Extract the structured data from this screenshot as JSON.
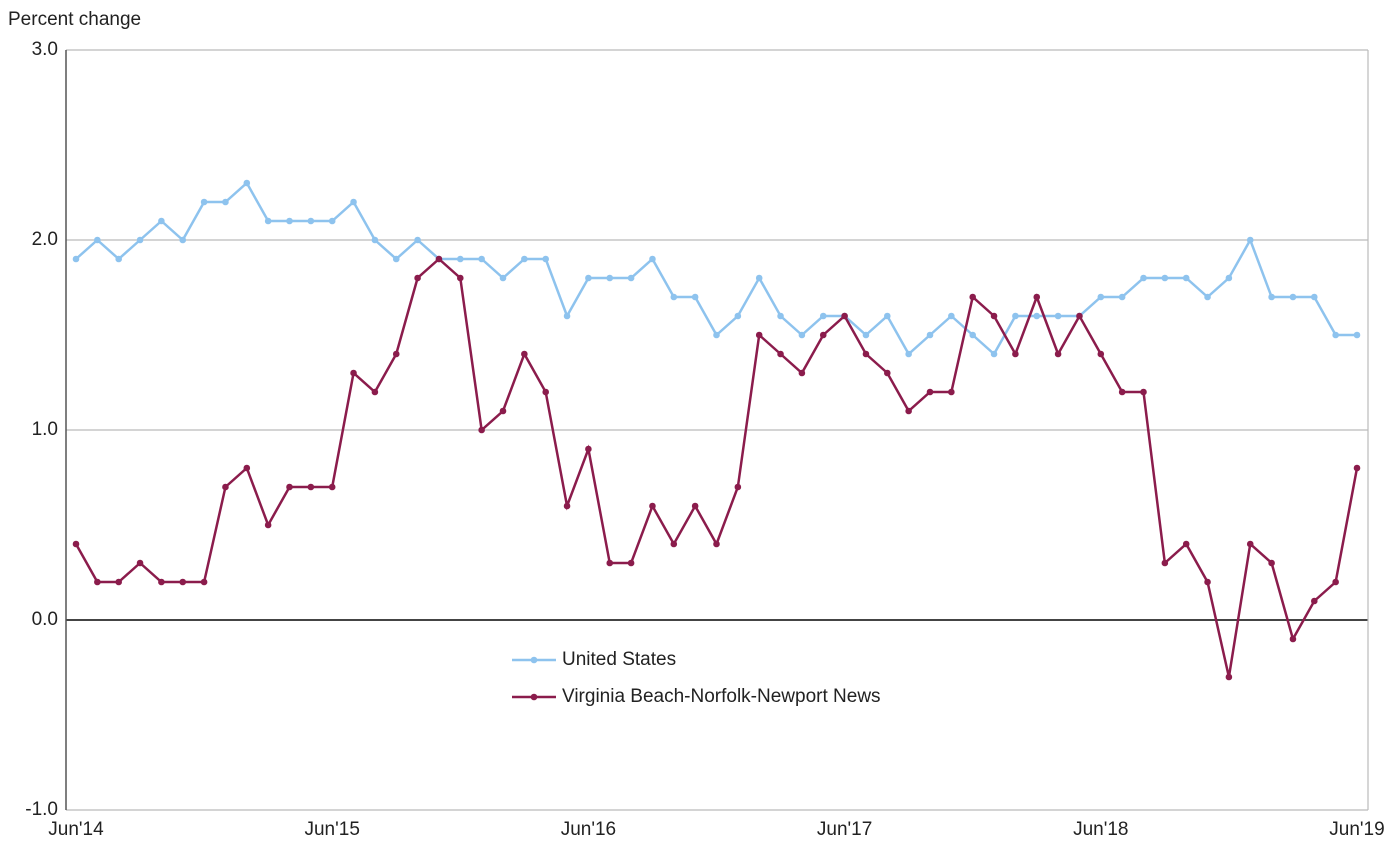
{
  "chart_data": {
    "type": "line",
    "y_axis_label": "Percent change",
    "categories": [
      "Jun'14",
      null,
      null,
      null,
      null,
      null,
      null,
      null,
      null,
      null,
      null,
      null,
      "Jun'15",
      null,
      null,
      null,
      null,
      null,
      null,
      null,
      null,
      null,
      null,
      null,
      "Jun'16",
      null,
      null,
      null,
      null,
      null,
      null,
      null,
      null,
      null,
      null,
      null,
      "Jun'17",
      null,
      null,
      null,
      null,
      null,
      null,
      null,
      null,
      null,
      null,
      null,
      "Jun'18",
      null,
      null,
      null,
      null,
      null,
      null,
      null,
      null,
      null,
      null,
      null,
      "Jun'19"
    ],
    "series": [
      {
        "name": "United States",
        "color": "#8ec3ee",
        "values": [
          1.9,
          2.0,
          1.9,
          2.0,
          2.1,
          2.0,
          2.2,
          2.2,
          2.3,
          2.1,
          2.1,
          2.1,
          2.1,
          2.2,
          2.0,
          1.9,
          2.0,
          1.9,
          1.9,
          1.9,
          1.8,
          1.9,
          1.9,
          1.6,
          1.8,
          1.8,
          1.8,
          1.9,
          1.7,
          1.7,
          1.5,
          1.6,
          1.8,
          1.6,
          1.5,
          1.6,
          1.6,
          1.5,
          1.6,
          1.4,
          1.5,
          1.6,
          1.5,
          1.4,
          1.6,
          1.6,
          1.6,
          1.6,
          1.7,
          1.7,
          1.8,
          1.8,
          1.8,
          1.7,
          1.8,
          2.0,
          1.7,
          1.7,
          1.7,
          1.5,
          1.5
        ]
      },
      {
        "name": "Virginia Beach-Norfolk-Newport News",
        "color": "#8b1c4c",
        "values": [
          0.4,
          0.2,
          0.2,
          0.3,
          0.2,
          0.2,
          0.2,
          0.7,
          0.8,
          0.5,
          0.7,
          0.7,
          0.7,
          1.3,
          1.2,
          1.4,
          1.8,
          1.9,
          1.8,
          1.0,
          1.1,
          1.4,
          1.2,
          0.6,
          0.9,
          0.3,
          0.3,
          0.6,
          0.4,
          0.6,
          0.4,
          0.7,
          1.5,
          1.4,
          1.3,
          1.5,
          1.6,
          1.4,
          1.3,
          1.1,
          1.2,
          1.2,
          1.7,
          1.6,
          1.4,
          1.7,
          1.4,
          1.6,
          1.4,
          1.2,
          1.2,
          0.3,
          0.4,
          0.2,
          -0.3,
          0.4,
          0.3,
          -0.1,
          0.1,
          0.2,
          0.8
        ]
      }
    ],
    "ylim": [
      -1,
      3
    ],
    "yticks": [
      {
        "value": -1,
        "label": "-1.0"
      },
      {
        "value": 0,
        "label": "0.0"
      },
      {
        "value": 1,
        "label": "1.0"
      },
      {
        "value": 2,
        "label": "2.0"
      },
      {
        "value": 3,
        "label": "3.0"
      }
    ],
    "grid": true
  }
}
